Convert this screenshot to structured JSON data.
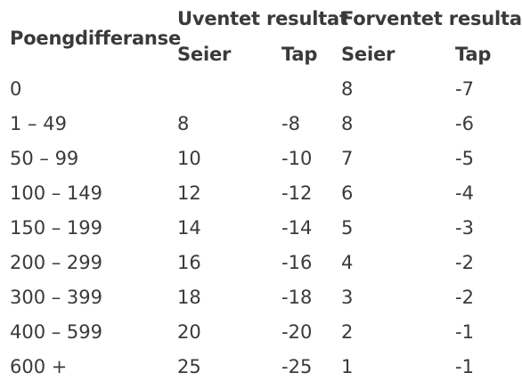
{
  "table": {
    "row_header": "Poengdifferanse",
    "groups": [
      {
        "label": "Uventet resultat",
        "sub": [
          "Seier",
          "Tap"
        ]
      },
      {
        "label": "Forventet resultat",
        "sub": [
          "Seier",
          "Tap"
        ]
      }
    ],
    "rows": [
      {
        "diff": "0",
        "u_win": "",
        "u_loss": "",
        "f_win": "8",
        "f_loss": "-7"
      },
      {
        "diff": "1 – 49",
        "u_win": "8",
        "u_loss": "-8",
        "f_win": "8",
        "f_loss": "-6"
      },
      {
        "diff": "50 – 99",
        "u_win": "10",
        "u_loss": "-10",
        "f_win": "7",
        "f_loss": "-5"
      },
      {
        "diff": "100 – 149",
        "u_win": "12",
        "u_loss": "-12",
        "f_win": "6",
        "f_loss": "-4"
      },
      {
        "diff": "150 – 199",
        "u_win": "14",
        "u_loss": "-14",
        "f_win": "5",
        "f_loss": "-3"
      },
      {
        "diff": "200 – 299",
        "u_win": "16",
        "u_loss": "-16",
        "f_win": "4",
        "f_loss": "-2"
      },
      {
        "diff": "300 – 399",
        "u_win": "18",
        "u_loss": "-18",
        "f_win": "3",
        "f_loss": "-2"
      },
      {
        "diff": "400 – 599",
        "u_win": "20",
        "u_loss": "-20",
        "f_win": "2",
        "f_loss": "-1"
      },
      {
        "diff": "600 +",
        "u_win": "25",
        "u_loss": "-25",
        "f_win": "1",
        "f_loss": "-1"
      }
    ]
  },
  "colors": {
    "text": "#3a3a3a",
    "background": "#ffffff"
  }
}
